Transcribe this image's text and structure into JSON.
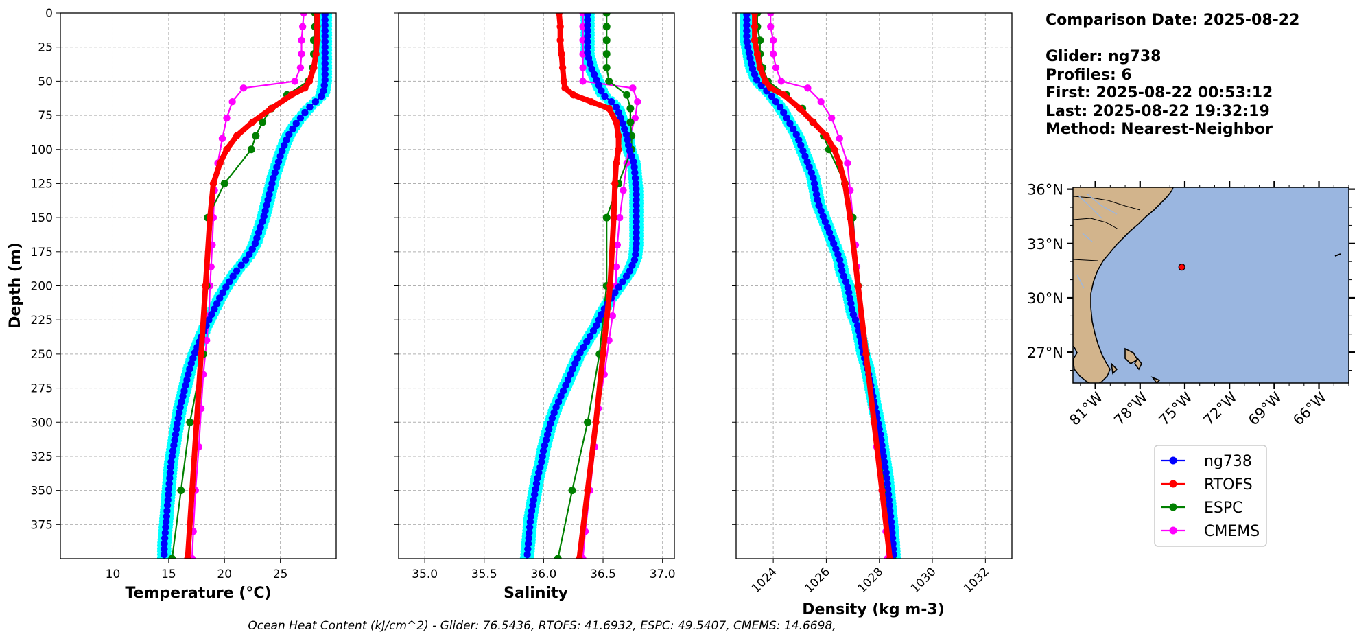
{
  "info": {
    "comparison_date": "Comparison Date: 2025-08-22",
    "glider": "Glider: ng738",
    "profiles": "Profiles: 6",
    "first": "First: 2025-08-22 00:53:12",
    "last": "Last: 2025-08-22 19:32:19",
    "method": "Method: Nearest-Neighbor"
  },
  "caption": "Ocean Heat Content (kJ/cm^2) - Glider: 76.5436,  RTOFS: 41.6932,  ESPC: 49.5407,  CMEMS: 14.6698,",
  "colors": {
    "ng738": "#0000ff",
    "glider_raw": "#00ffff",
    "RTOFS": "#ff0000",
    "ESPC": "#008000",
    "CMEMS": "#ff00ff",
    "land": "#d2b48c",
    "ocean": "#9ab6e0"
  },
  "legend": [
    {
      "name": "ng738",
      "color": "#0000ff"
    },
    {
      "name": "RTOFS",
      "color": "#ff0000"
    },
    {
      "name": "ESPC",
      "color": "#008000"
    },
    {
      "name": "CMEMS",
      "color": "#ff00ff"
    }
  ],
  "map": {
    "lat_labels": [
      "36°N",
      "33°N",
      "30°N",
      "27°N"
    ],
    "lat_values": [
      36,
      33,
      30,
      27
    ],
    "lon_labels": [
      "81°W",
      "78°W",
      "75°W",
      "72°W",
      "69°W",
      "66°W"
    ],
    "lon_values": [
      -81,
      -78,
      -75,
      -72,
      -69,
      -66
    ],
    "extent": {
      "lon": [
        -82.5,
        -64
      ],
      "lat": [
        25.3,
        36.1
      ]
    },
    "glider_position": {
      "lon": -75.2,
      "lat": 31.7
    }
  },
  "chart_data": [
    {
      "type": "line",
      "xlabel": "Temperature (°C)",
      "ylabel": "Depth (m)",
      "xlim": [
        5.3,
        30
      ],
      "ylim": [
        400,
        0
      ],
      "xticks": [
        10,
        15,
        20,
        25
      ],
      "yticks": [
        0,
        25,
        50,
        75,
        100,
        125,
        150,
        175,
        200,
        225,
        250,
        275,
        300,
        325,
        350,
        375
      ],
      "grid": true,
      "series": [
        {
          "name": "ng738",
          "depth": [
            0,
            10,
            20,
            30,
            40,
            50,
            60,
            70,
            80,
            90,
            100,
            110,
            120,
            130,
            140,
            150,
            160,
            170,
            180,
            190,
            200,
            210,
            220,
            230,
            240,
            250,
            260,
            270,
            280,
            290,
            300,
            310,
            320,
            330,
            340,
            350,
            360,
            370,
            380,
            390,
            400
          ],
          "values": [
            29.0,
            29.0,
            29.0,
            29.0,
            29.0,
            29.0,
            28.8,
            27.5,
            26.5,
            25.7,
            25.2,
            24.8,
            24.4,
            24.1,
            23.8,
            23.5,
            23.1,
            22.7,
            22.0,
            21.0,
            20.2,
            19.5,
            18.9,
            18.3,
            17.8,
            17.3,
            16.9,
            16.6,
            16.3,
            16.0,
            15.8,
            15.6,
            15.4,
            15.2,
            15.1,
            15.0,
            14.9,
            14.8,
            14.7,
            14.6,
            14.6
          ]
        },
        {
          "name": "RTOFS",
          "depth": [
            0,
            10,
            20,
            30,
            40,
            50,
            55,
            60,
            70,
            80,
            90,
            100,
            110,
            125,
            150,
            200,
            250,
            300,
            350,
            400
          ],
          "values": [
            28.3,
            28.3,
            28.3,
            28.2,
            28.0,
            27.6,
            27.2,
            26.0,
            24.2,
            22.5,
            21.1,
            20.2,
            19.6,
            19.0,
            18.7,
            18.3,
            17.9,
            17.5,
            17.1,
            16.7
          ]
        },
        {
          "name": "ESPC",
          "depth": [
            0,
            10,
            20,
            30,
            40,
            50,
            60,
            70,
            80,
            90,
            100,
            125,
            150,
            200,
            250,
            300,
            350,
            400
          ],
          "values": [
            28.1,
            28.1,
            28.0,
            28.0,
            27.9,
            27.5,
            25.6,
            24.2,
            23.4,
            22.8,
            22.4,
            20.0,
            18.5,
            18.4,
            18.1,
            16.9,
            16.1,
            15.3
          ]
        },
        {
          "name": "CMEMS",
          "depth": [
            0,
            10,
            20,
            30,
            40,
            50,
            55,
            65,
            77,
            92,
            110,
            130,
            150,
            170,
            186,
            200,
            222,
            240,
            265,
            290,
            318,
            350,
            380,
            400
          ],
          "values": [
            27.1,
            27.0,
            26.9,
            26.9,
            26.8,
            26.3,
            21.7,
            20.7,
            20.2,
            19.8,
            19.4,
            19.1,
            19.0,
            18.9,
            18.8,
            18.7,
            18.6,
            18.4,
            18.1,
            17.9,
            17.7,
            17.4,
            17.2,
            17.1
          ]
        }
      ]
    },
    {
      "type": "line",
      "xlabel": "Salinity",
      "ylabel": "",
      "xlim": [
        34.78,
        37.1
      ],
      "ylim": [
        400,
        0
      ],
      "xticks": [
        35.0,
        35.5,
        36.0,
        36.5,
        37.0
      ],
      "yticks": [
        0,
        25,
        50,
        75,
        100,
        125,
        150,
        175,
        200,
        225,
        250,
        275,
        300,
        325,
        350,
        375
      ],
      "grid": true,
      "series": [
        {
          "name": "ng738",
          "depth": [
            0,
            10,
            20,
            30,
            40,
            50,
            60,
            65,
            70,
            80,
            90,
            100,
            110,
            120,
            130,
            140,
            150,
            160,
            170,
            180,
            190,
            200,
            210,
            220,
            230,
            240,
            250,
            260,
            270,
            280,
            290,
            300,
            310,
            320,
            330,
            340,
            350,
            360,
            370,
            380,
            390,
            400
          ],
          "values": [
            36.37,
            36.37,
            36.37,
            36.37,
            36.4,
            36.45,
            36.5,
            36.57,
            36.62,
            36.66,
            36.7,
            36.72,
            36.76,
            36.77,
            36.78,
            36.78,
            36.78,
            36.78,
            36.78,
            36.77,
            36.72,
            36.64,
            36.56,
            36.49,
            36.44,
            36.37,
            36.3,
            36.25,
            36.2,
            36.15,
            36.1,
            36.06,
            36.03,
            36.0,
            35.98,
            35.95,
            35.93,
            35.91,
            35.89,
            35.88,
            35.87,
            35.86
          ]
        },
        {
          "name": "RTOFS",
          "depth": [
            0,
            10,
            20,
            30,
            40,
            50,
            55,
            60,
            65,
            70,
            80,
            90,
            100,
            110,
            125,
            150,
            200,
            250,
            300,
            350,
            400
          ],
          "values": [
            36.13,
            36.14,
            36.14,
            36.15,
            36.16,
            36.17,
            36.18,
            36.25,
            36.4,
            36.55,
            36.61,
            36.63,
            36.63,
            36.61,
            36.6,
            36.59,
            36.56,
            36.5,
            36.44,
            36.37,
            36.3
          ]
        },
        {
          "name": "ESPC",
          "depth": [
            0,
            10,
            20,
            30,
            40,
            50,
            60,
            70,
            80,
            90,
            100,
            125,
            150,
            200,
            250,
            300,
            350,
            400
          ],
          "values": [
            36.53,
            36.53,
            36.53,
            36.53,
            36.53,
            36.55,
            36.7,
            36.73,
            36.73,
            36.74,
            36.74,
            36.63,
            36.53,
            36.53,
            36.47,
            36.37,
            36.24,
            36.12
          ]
        },
        {
          "name": "CMEMS",
          "depth": [
            0,
            10,
            20,
            30,
            40,
            50,
            55,
            65,
            77,
            92,
            110,
            130,
            150,
            170,
            186,
            200,
            222,
            240,
            265,
            290,
            318,
            350,
            380,
            400
          ],
          "values": [
            36.33,
            36.33,
            36.33,
            36.33,
            36.33,
            36.33,
            36.75,
            36.79,
            36.77,
            36.72,
            36.7,
            36.67,
            36.64,
            36.62,
            36.61,
            36.61,
            36.58,
            36.55,
            36.51,
            36.46,
            36.43,
            36.39,
            36.35,
            36.33
          ]
        }
      ]
    },
    {
      "type": "line",
      "xlabel": "Density (kg m-3)",
      "ylabel": "",
      "xlim": [
        1022.6,
        1033.0
      ],
      "ylim": [
        400,
        0
      ],
      "xticks": [
        1024,
        1026,
        1028,
        1030,
        1032
      ],
      "yticks": [
        0,
        25,
        50,
        75,
        100,
        125,
        150,
        175,
        200,
        225,
        250,
        275,
        300,
        325,
        350,
        375
      ],
      "grid": true,
      "series": [
        {
          "name": "ng738",
          "depth": [
            0,
            10,
            20,
            30,
            40,
            50,
            60,
            70,
            80,
            90,
            100,
            110,
            120,
            130,
            140,
            150,
            160,
            170,
            180,
            190,
            200,
            210,
            220,
            230,
            240,
            250,
            260,
            270,
            280,
            290,
            300,
            310,
            320,
            330,
            340,
            350,
            360,
            370,
            380,
            390,
            400
          ],
          "values": [
            1023.0,
            1023.0,
            1023.0,
            1023.1,
            1023.2,
            1023.4,
            1023.9,
            1024.3,
            1024.6,
            1024.9,
            1025.1,
            1025.3,
            1025.5,
            1025.6,
            1025.7,
            1025.9,
            1026.1,
            1026.3,
            1026.5,
            1026.6,
            1026.8,
            1026.9,
            1027.0,
            1027.2,
            1027.3,
            1027.4,
            1027.55,
            1027.65,
            1027.75,
            1027.85,
            1027.95,
            1028.05,
            1028.12,
            1028.2,
            1028.28,
            1028.33,
            1028.38,
            1028.43,
            1028.48,
            1028.52,
            1028.55
          ]
        },
        {
          "name": "RTOFS",
          "depth": [
            0,
            10,
            20,
            30,
            40,
            50,
            55,
            60,
            70,
            80,
            90,
            100,
            110,
            125,
            150,
            200,
            250,
            300,
            350,
            400
          ],
          "values": [
            1023.3,
            1023.3,
            1023.3,
            1023.4,
            1023.5,
            1023.7,
            1023.9,
            1024.4,
            1025.0,
            1025.5,
            1026.0,
            1026.3,
            1026.5,
            1026.7,
            1026.9,
            1027.2,
            1027.5,
            1027.8,
            1028.1,
            1028.4
          ]
        },
        {
          "name": "ESPC",
          "depth": [
            0,
            10,
            20,
            30,
            40,
            50,
            60,
            70,
            80,
            90,
            100,
            125,
            150,
            200,
            250,
            300,
            350,
            400
          ],
          "values": [
            1023.4,
            1023.4,
            1023.5,
            1023.5,
            1023.6,
            1023.8,
            1024.5,
            1025.1,
            1025.5,
            1025.9,
            1026.1,
            1026.7,
            1027.0,
            1027.2,
            1027.5,
            1027.9,
            1028.2,
            1028.5
          ]
        },
        {
          "name": "CMEMS",
          "depth": [
            0,
            10,
            20,
            30,
            40,
            50,
            55,
            65,
            77,
            92,
            110,
            130,
            150,
            170,
            186,
            200,
            222,
            240,
            265,
            290,
            318,
            350,
            380,
            400
          ],
          "values": [
            1023.9,
            1023.9,
            1024.0,
            1024.0,
            1024.1,
            1024.3,
            1025.3,
            1025.8,
            1026.2,
            1026.5,
            1026.8,
            1026.9,
            1027.0,
            1027.1,
            1027.15,
            1027.2,
            1027.3,
            1027.4,
            1027.6,
            1027.75,
            1027.9,
            1028.1,
            1028.25,
            1028.3
          ]
        }
      ]
    }
  ]
}
